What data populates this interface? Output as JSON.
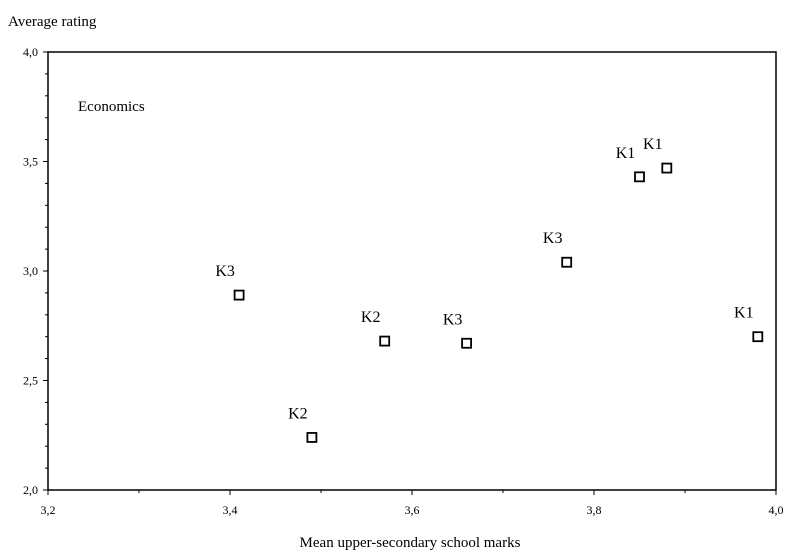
{
  "chart_data": {
    "type": "scatter",
    "ylabel": "Average rating",
    "xlabel": "Mean upper-secondary school marks",
    "annotation": "Economics",
    "xlim": [
      3.2,
      4.0
    ],
    "ylim": [
      2.0,
      4.0
    ],
    "x_ticks": [
      3.2,
      3.4,
      3.6,
      3.8,
      4.0
    ],
    "y_ticks": [
      2.0,
      2.5,
      3.0,
      3.5,
      4.0
    ],
    "x_tick_labels": [
      "3,2",
      "3,4",
      "3,6",
      "3,8",
      "4,0"
    ],
    "y_tick_labels": [
      "2,0",
      "2,5",
      "3,0",
      "3,5",
      "4,0"
    ],
    "marker": "open-square",
    "points": [
      {
        "label": "K3",
        "x": 3.41,
        "y": 2.89
      },
      {
        "label": "K2",
        "x": 3.49,
        "y": 2.24
      },
      {
        "label": "K2",
        "x": 3.57,
        "y": 2.68
      },
      {
        "label": "K3",
        "x": 3.66,
        "y": 2.67
      },
      {
        "label": "K3",
        "x": 3.77,
        "y": 3.04
      },
      {
        "label": "K1",
        "x": 3.85,
        "y": 3.43
      },
      {
        "label": "K1",
        "x": 3.88,
        "y": 3.47
      },
      {
        "label": "K1",
        "x": 3.98,
        "y": 2.7
      }
    ]
  }
}
